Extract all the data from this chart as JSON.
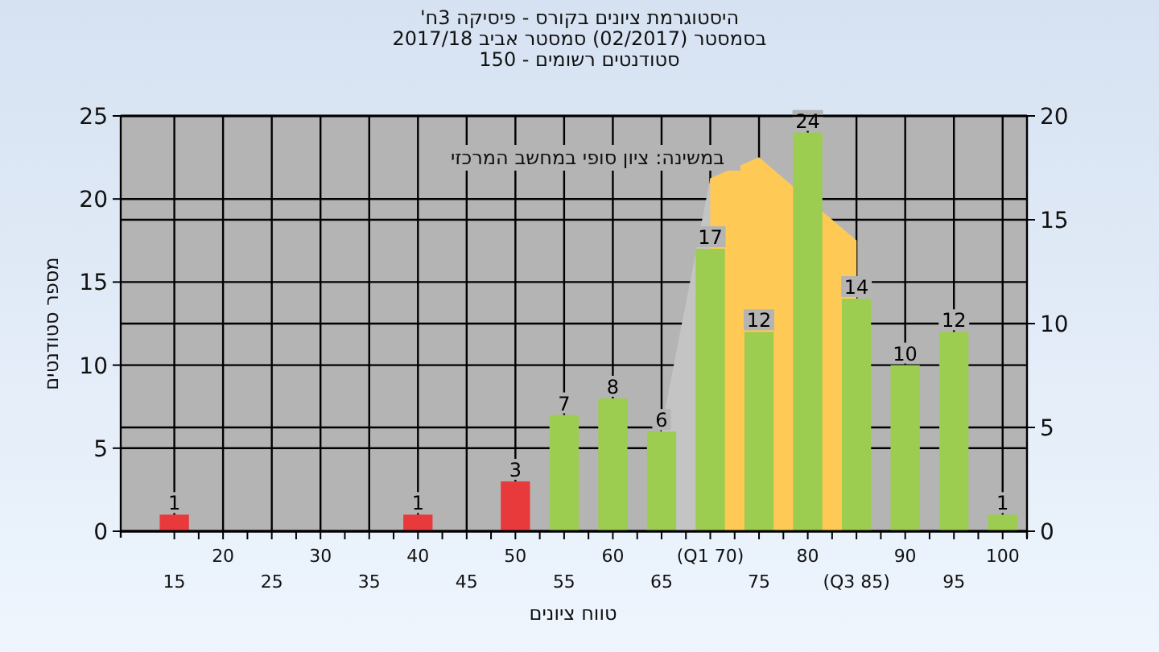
{
  "chart_data": {
    "type": "bar",
    "title": "היסטוגרמת ציונים בקורס - פיסיקה 3ח'",
    "subtitle": "בסמסטר (02/2017) סמסטר אביב 2017/18\nסטודנטים רשומים - 150",
    "xlabel": "טווח ציונים",
    "ylabel": "מספר סטודנטים",
    "categories": [
      "15",
      "20",
      "25",
      "30",
      "35",
      "40",
      "45",
      "50",
      "55",
      "60",
      "65",
      "(Q1 70)",
      "75",
      "80",
      "(Q3 85)",
      "90",
      "95",
      "100"
    ],
    "series": [
      {
        "type": "area",
        "axis": "y2",
        "color": "#c4c4c4",
        "values": [
          null,
          null,
          null,
          null,
          null,
          null,
          null,
          null,
          null,
          null,
          5,
          17,
          18,
          null,
          14,
          null,
          null,
          null
        ]
      },
      {
        "type": "area",
        "axis": "y2",
        "color": "#ffc955",
        "values": [
          null,
          null,
          null,
          null,
          null,
          null,
          null,
          null,
          null,
          null,
          null,
          17,
          18,
          null,
          14,
          null,
          null,
          null
        ]
      },
      {
        "value_labels": [
          "1",
          null,
          null,
          null,
          null,
          "1",
          null,
          "3",
          "7",
          "8",
          "6",
          "17",
          "12",
          "24",
          "14",
          "10",
          "12",
          "1"
        ],
        "colors": [
          "#e83a3a",
          "#e83a3a",
          "#e83a3a",
          "#e83a3a",
          "#e83a3a",
          "#e83a3a",
          "#e83a3a",
          "#e83a3a",
          "#9ccc50",
          "#9ccc50",
          "#9ccc50",
          "#9ccc50",
          "#9ccc50",
          "#9ccc50",
          "#9ccc50",
          "#9ccc50",
          "#9ccc50",
          "#9ccc50"
        ],
        "values": [
          1,
          0,
          0,
          0,
          0,
          1,
          0,
          3,
          7,
          8,
          6,
          17,
          12,
          24,
          14,
          10,
          12,
          1
        ]
      }
    ],
    "ylim": [
      0,
      25
    ],
    "yticks": [
      0,
      5,
      10,
      15,
      20,
      25
    ],
    "y2lim": [
      0,
      20
    ],
    "y2ticks": [
      0,
      5,
      10,
      15,
      20
    ],
    "grid": true,
    "annotations": [
      "במשינה: ציון סופי במחשב המרכזי"
    ]
  }
}
